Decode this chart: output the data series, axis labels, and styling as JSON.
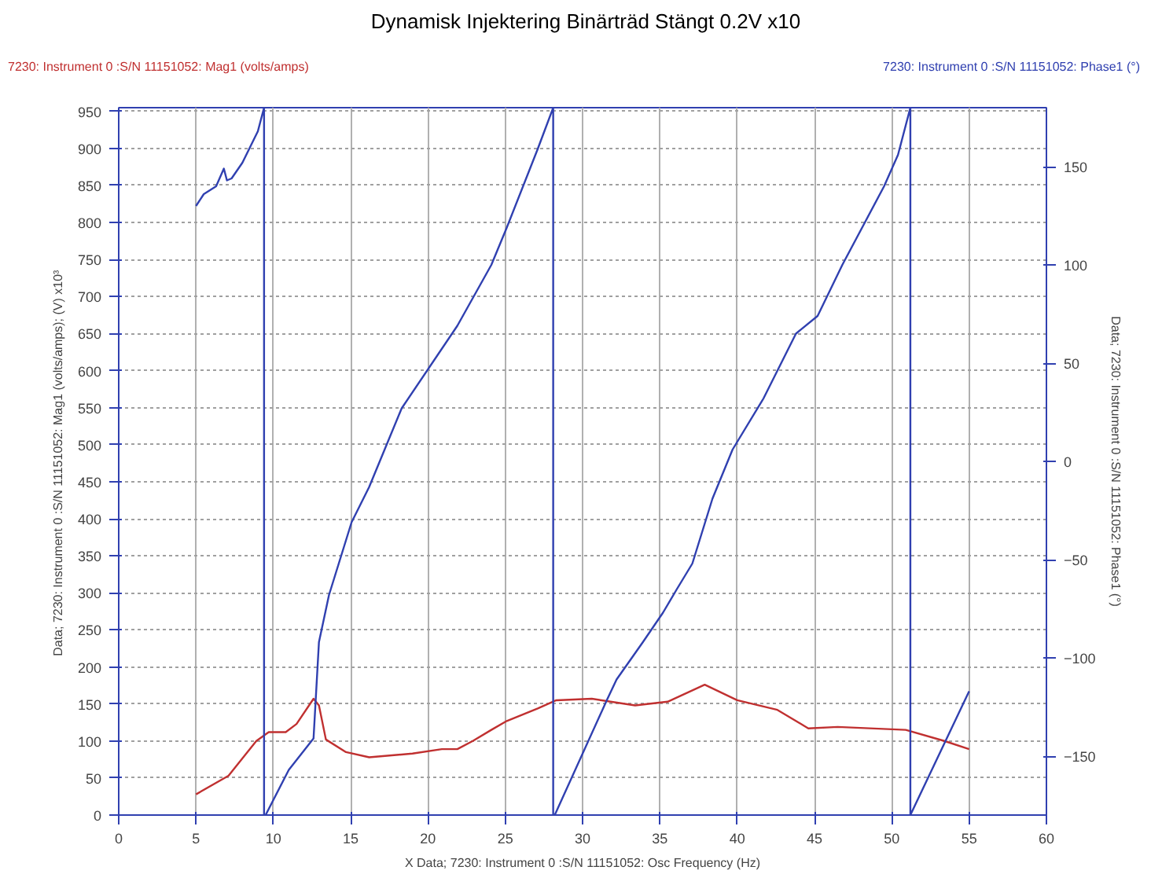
{
  "chart_data": {
    "type": "line",
    "title": "Dynamisk Injektering Binärträd Stängt  0.2V x10",
    "xlabel": "X Data; 7230: Instrument 0 :S/N 11151052: Osc Frequency (Hz)",
    "ylabel": "Data; 7230: Instrument 0 :S/N 11151052: Mag1 (volts/amps);  (V) x10³",
    "y2label": "Data; 7230: Instrument 0 :S/N 11151052: Phase1 (°)",
    "xlim": [
      0,
      60
    ],
    "xticks": [
      0,
      5,
      10,
      15,
      20,
      25,
      30,
      35,
      40,
      45,
      50,
      55,
      60
    ],
    "ylim": [
      0,
      955
    ],
    "yticks": [
      0,
      50,
      100,
      150,
      200,
      250,
      300,
      350,
      400,
      450,
      500,
      550,
      600,
      650,
      700,
      750,
      800,
      850,
      900,
      950
    ],
    "y2lim": [
      -180,
      180
    ],
    "y2ticks": [
      -150,
      -100,
      -50,
      0,
      50,
      100,
      150
    ],
    "grid": true,
    "marker": "none",
    "line_style": "solid",
    "series": [
      {
        "name": "7230: Instrument 0 :S/N 11151052: Mag1 (volts/amps)",
        "color": "#c03030",
        "x": [
          5,
          7.1,
          8.9,
          9.7,
          10.8,
          11.5,
          12.6,
          12.95,
          13.4,
          14.7,
          16.2,
          19,
          20.9,
          21.9,
          22.9,
          24.1,
          25.1,
          27.1,
          28.3,
          30.6,
          33.4,
          35.5,
          37.9,
          40,
          42.6,
          44.6,
          46.5,
          50.9,
          53.4,
          55
        ],
        "values": [
          28,
          53,
          100,
          112,
          112,
          123,
          157,
          148,
          102,
          85,
          78,
          83,
          89,
          89,
          100,
          115,
          127,
          144,
          155,
          157,
          148,
          153,
          176,
          155,
          142,
          117,
          119,
          115,
          100,
          89
        ]
      },
      {
        "name": "7230: Instrument 0 :S/N 11151052: Phase1 (°)",
        "color": "#3040b0",
        "axis": "y2",
        "x": [
          5,
          5.5,
          6.3,
          6.8,
          7.0,
          7.3,
          8,
          9,
          9.4,
          9.4,
          9.5,
          11.0,
          12.6,
          12.95,
          13.6,
          15.06,
          16.2,
          18.3,
          21.9,
          24.1,
          25.1,
          27.1,
          28.1,
          28.1,
          28.2,
          31.6,
          32.2,
          33.9,
          35.2,
          36.1,
          37.1,
          38.4,
          39.7,
          41.7,
          43.8,
          45.2,
          46.8,
          49.5,
          50.4,
          51.2,
          51.2,
          55.0
        ],
        "values": [
          130,
          136,
          140,
          149,
          143,
          144,
          152,
          168,
          180,
          -180,
          -180,
          -157,
          -141,
          -92,
          -68,
          -31,
          -13,
          27,
          69,
          100,
          119,
          159,
          180,
          -180,
          -180,
          -121,
          -111,
          -92,
          -77,
          -65,
          -52,
          -19,
          6,
          32,
          65,
          74,
          100,
          140,
          156,
          180,
          -180,
          -117
        ]
      }
    ]
  }
}
